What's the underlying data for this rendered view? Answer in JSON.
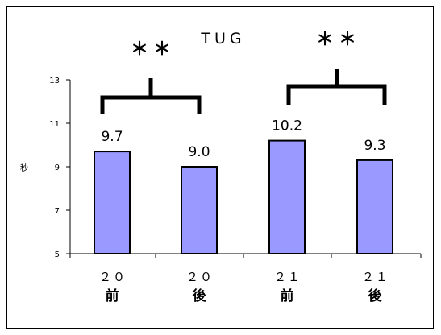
{
  "chart_data": {
    "type": "bar",
    "title": "TUG",
    "ylabel": "秒",
    "xlabel": "",
    "categories": [
      {
        "top": "２０",
        "bottom": "前"
      },
      {
        "top": "２０",
        "bottom": "後"
      },
      {
        "top": "２１",
        "bottom": "前"
      },
      {
        "top": "２１",
        "bottom": "後"
      }
    ],
    "values": [
      9.7,
      9.0,
      10.2,
      9.3
    ],
    "data_labels": [
      "9.7",
      "9.0",
      "10.2",
      "9.3"
    ],
    "ylim": [
      5,
      13
    ],
    "yticks": [
      5,
      7,
      9,
      11,
      13
    ],
    "ytick_labels": [
      "5",
      "7",
      "9",
      "11",
      "13"
    ],
    "grid": false,
    "legend": "none",
    "bar_color": "#9999ff",
    "bar_edge_color": "#000000",
    "significance": [
      {
        "pair": [
          0,
          1
        ],
        "mark": "＊＊"
      },
      {
        "pair": [
          2,
          3
        ],
        "mark": "＊＊"
      }
    ]
  }
}
